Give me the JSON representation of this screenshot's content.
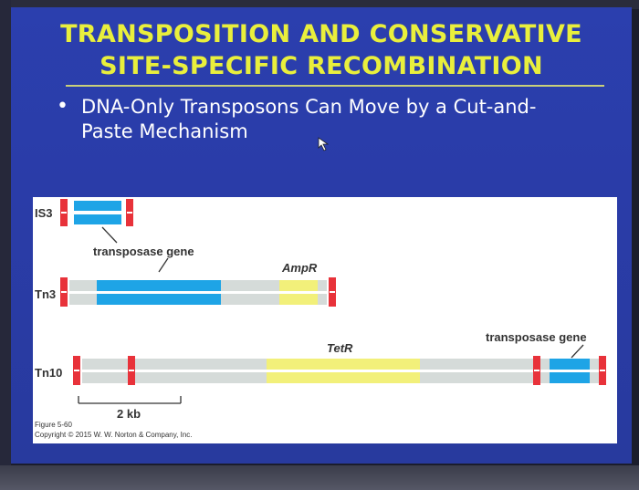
{
  "title_line1": "TRANSPOSITION AND CONSERVATIVE",
  "title_line2": "SITE-SPECIFIC RECOMBINATION",
  "bullet": "DNA-Only Transposons Can Move by a Cut-and-Paste Mechanism",
  "bullet_line1": "DNA-Only Transposons Can Move by a Cut-and-",
  "bullet_line2": "Paste Mechanism",
  "figure": {
    "labels": {
      "is3": "IS3",
      "tn3": "Tn3",
      "tn10": "Tn10",
      "transposase_gene_1": "transposase gene",
      "ampr": "AmpR",
      "tetr": "TetR",
      "transposase_gene_2": "transposase gene",
      "scale": "2 kb"
    },
    "caption_line1": "Figure 5-60",
    "caption_line2": "Copyright © 2015 W. W. Norton & Company, Inc.",
    "colors": {
      "repeat": "#e8323a",
      "transposase": "#1ea4e6",
      "resistance": "#f2f07a",
      "backbone": "#d5dbd9"
    }
  }
}
